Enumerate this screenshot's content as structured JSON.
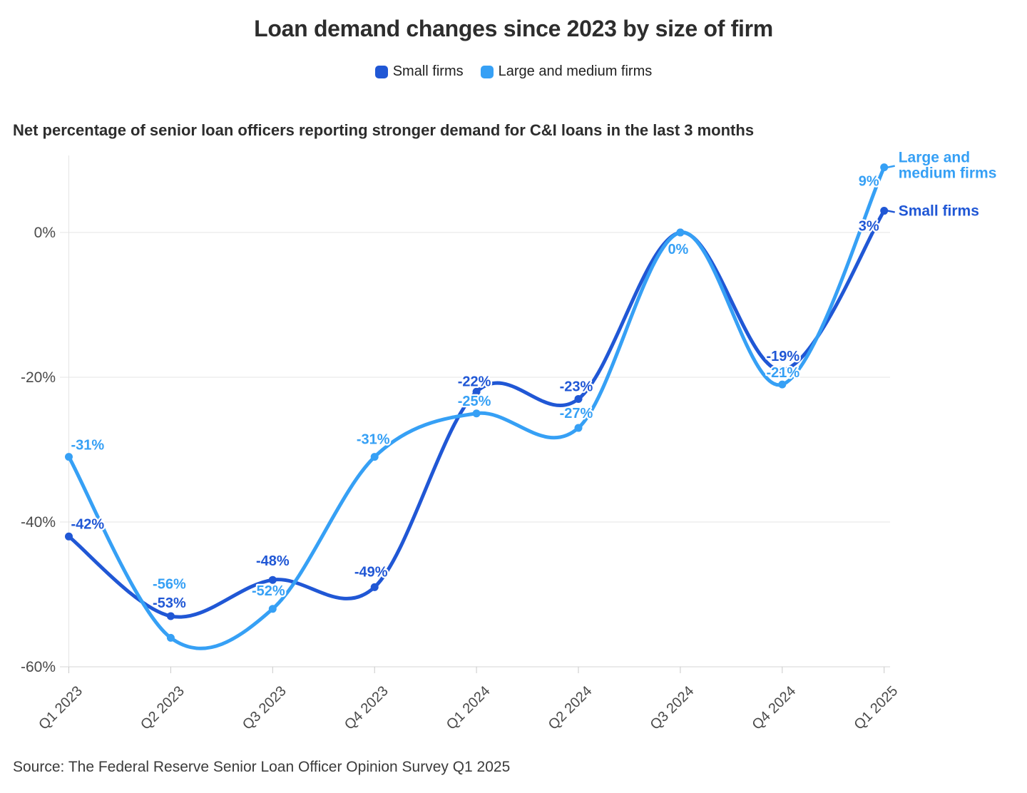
{
  "title": "Loan demand changes since 2023 by size of firm",
  "subtitle": "Net percentage of senior loan officers reporting stronger demand for C&I loans in the last 3 months",
  "source": "Source: The Federal Reserve Senior Loan Officer Opinion Survey Q1 2025",
  "legend": [
    {
      "label": "Small firms",
      "color": "#2057D5"
    },
    {
      "label": "Large and medium firms",
      "color": "#36A0F5"
    }
  ],
  "chart_data": {
    "type": "line",
    "title": "Loan demand changes since 2023 by size of firm",
    "subtitle": "Net percentage of senior loan officers reporting stronger demand for C&I loans in the last 3 months",
    "categories": [
      "Q1 2023",
      "Q2 2023",
      "Q3 2023",
      "Q4 2023",
      "Q1 2024",
      "Q2 2024",
      "Q3 2024",
      "Q4 2024",
      "Q1 2025"
    ],
    "unit": "%",
    "y_ticks": [
      "0%",
      "-20%",
      "-40%",
      "-60%"
    ],
    "y_tick_values": [
      0,
      -20,
      -40,
      -60
    ],
    "ylim": [
      -62,
      11
    ],
    "grid": true,
    "legend_position": "top",
    "x_label_rotation": -45,
    "grid_color": "#e4e4e4",
    "axis_color": "#d6d6d6",
    "axis_label_color": "#4a4a4a",
    "series": [
      {
        "name": "Small firms",
        "color": "#2057D5",
        "values": [
          -42,
          -53,
          -48,
          -49,
          -22,
          -23,
          0,
          -19,
          3
        ],
        "point_labels": [
          "-42%",
          "-53%",
          "-48%",
          "-49%",
          "-22%",
          "-23%",
          null,
          "-19%",
          "3%"
        ],
        "end_label_lines": [
          "Small firms"
        ]
      },
      {
        "name": "Large and medium firms",
        "color": "#36A0F5",
        "values": [
          -31,
          -56,
          -52,
          -31,
          -25,
          -27,
          0,
          -21,
          9
        ],
        "point_labels": [
          "-31%",
          "-56%",
          "-52%",
          "-31%",
          "-25%",
          "-27%",
          "0%",
          "-21%",
          "9%"
        ],
        "end_label_lines": [
          "Large and",
          "medium firms"
        ]
      }
    ]
  }
}
